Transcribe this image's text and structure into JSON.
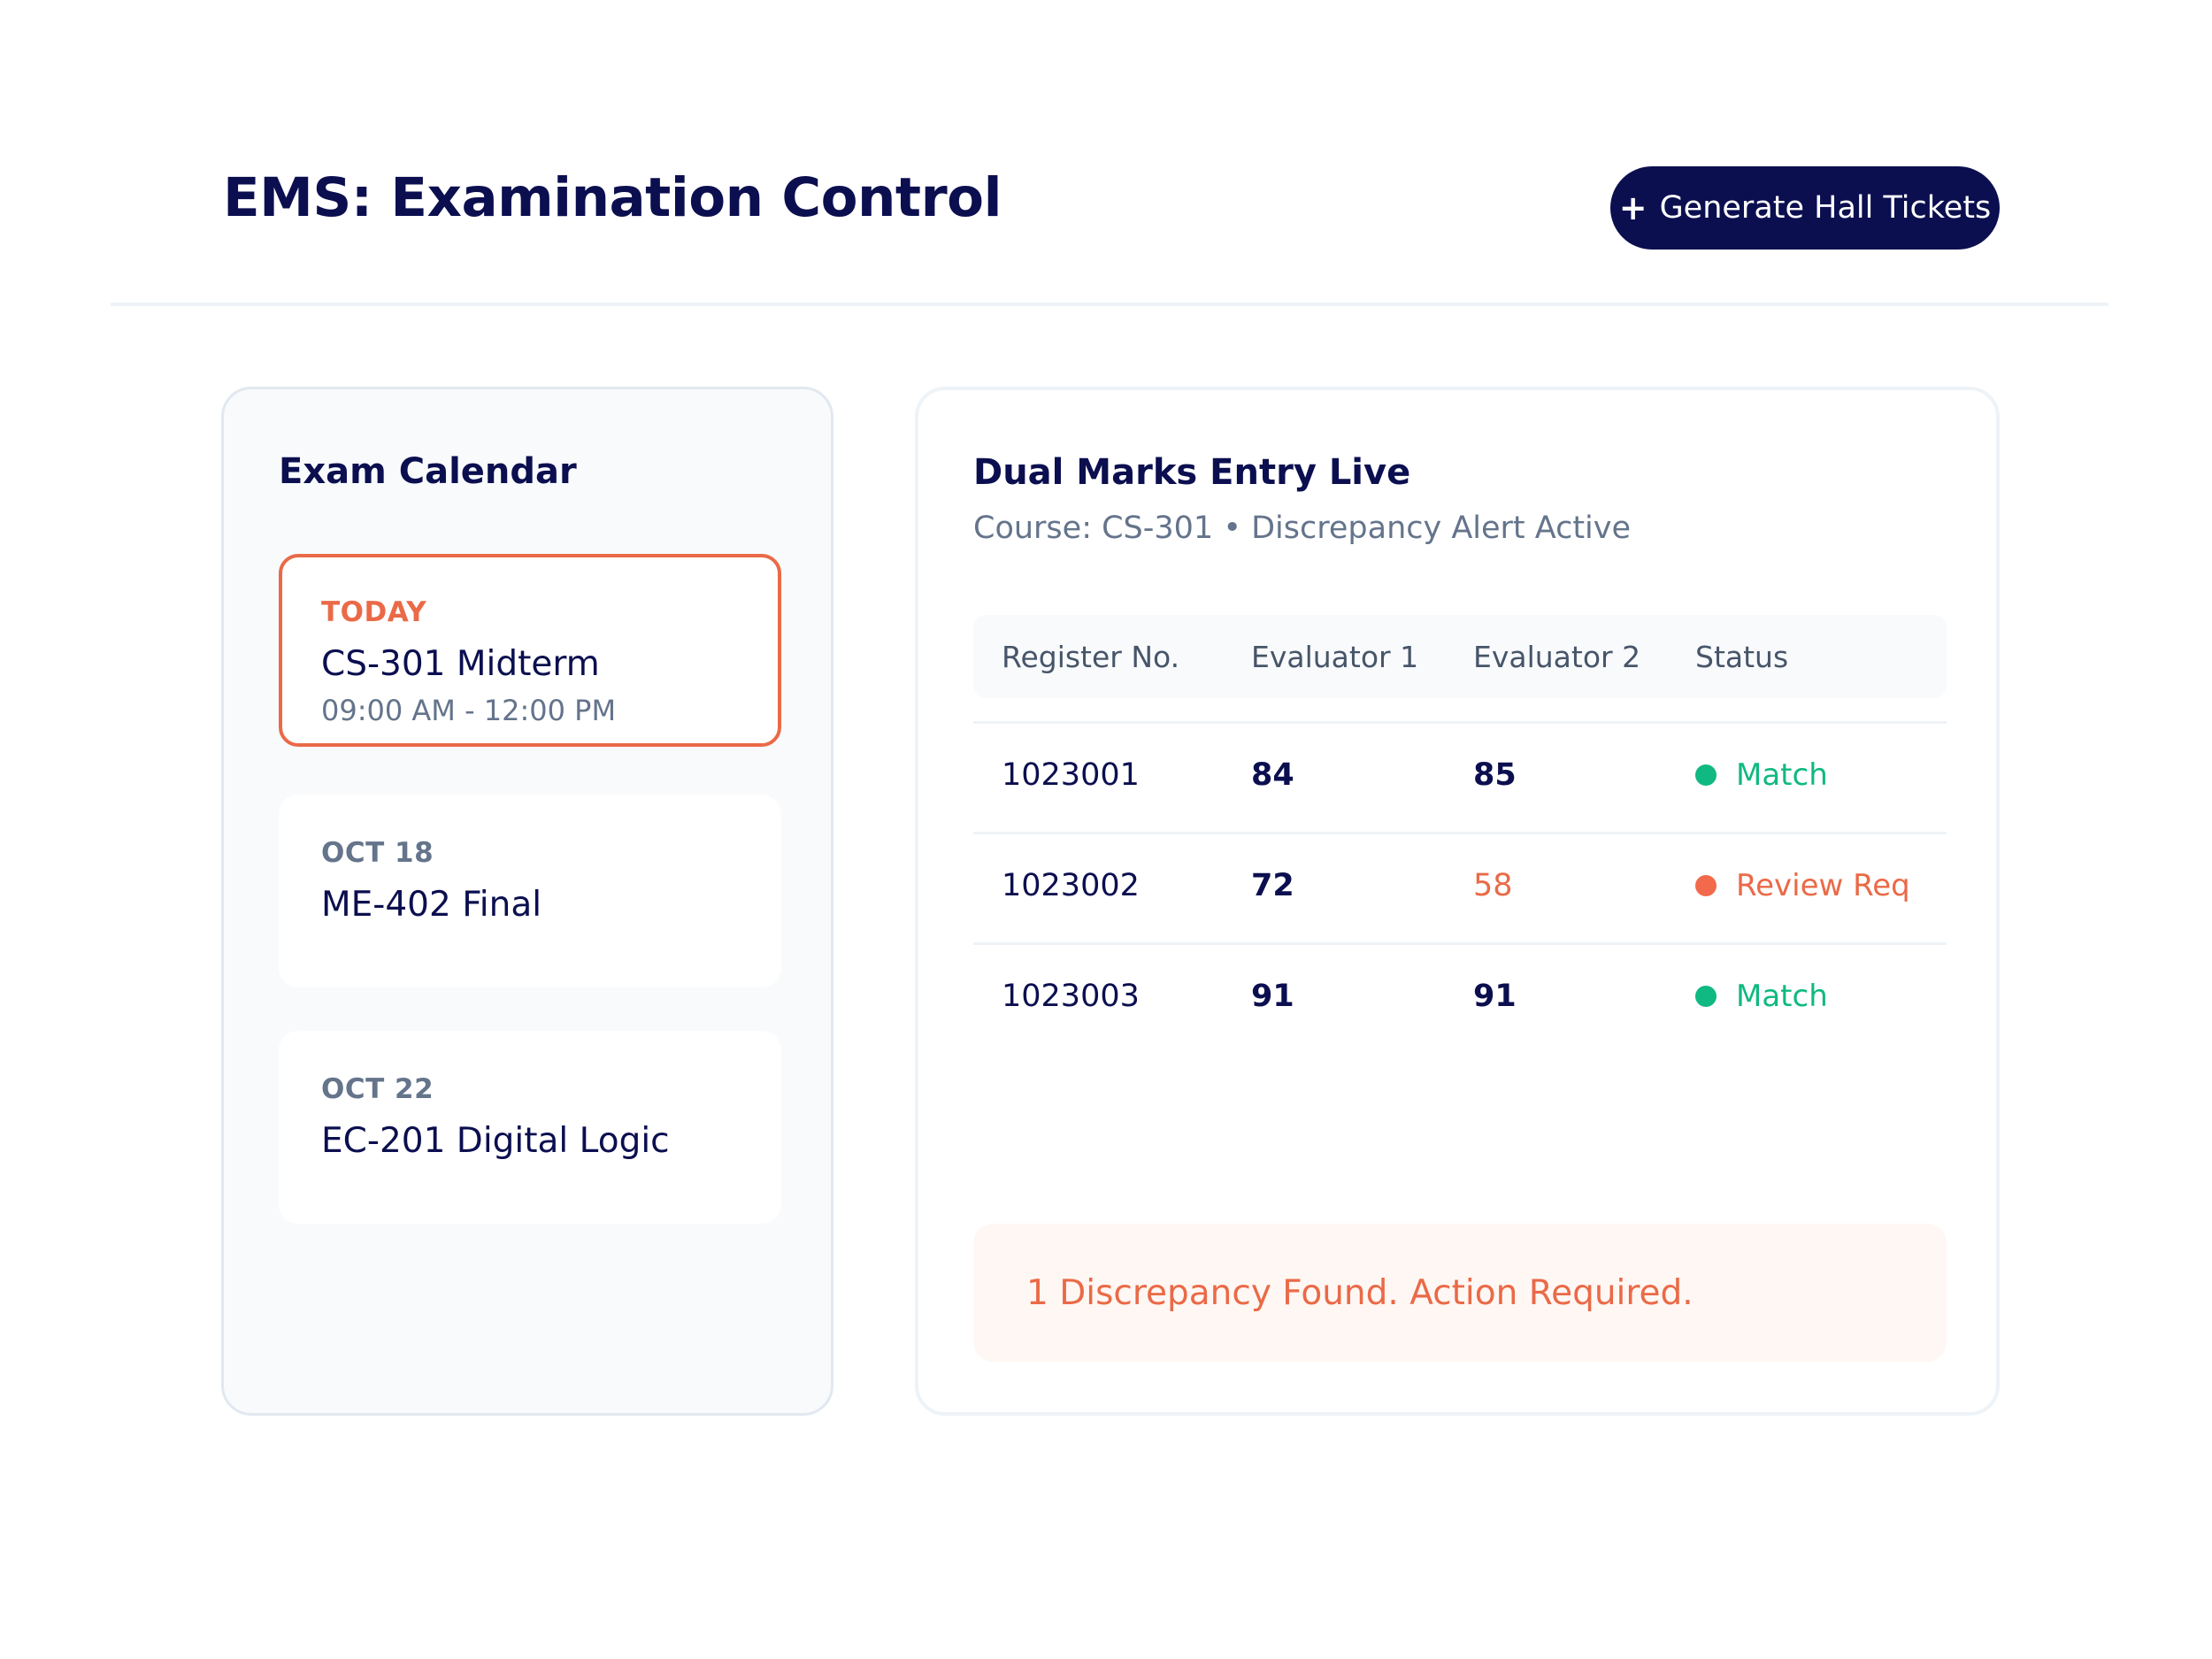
{
  "header": {
    "title": "EMS: Examination Control",
    "primary_action": {
      "icon": "plus-icon",
      "label": "Generate Hall Tickets"
    }
  },
  "calendar": {
    "title": "Exam Calendar",
    "items": [
      {
        "date": "TODAY",
        "name": "CS-301 Midterm",
        "time": "09:00 AM - 12:00 PM",
        "highlighted": true
      },
      {
        "date": "OCT 18",
        "name": "ME-402 Final"
      },
      {
        "date": "OCT 22",
        "name": "EC-201 Digital Logic"
      }
    ]
  },
  "marks": {
    "title": "Dual Marks Entry Live",
    "subtitle": "Course: CS-301 • Discrepancy Alert Active",
    "columns": [
      "Register No.",
      "Evaluator 1",
      "Evaluator 2",
      "Status"
    ],
    "rows": [
      {
        "register": "1023001",
        "eval1": "84",
        "eval2": "85",
        "status": "Match"
      },
      {
        "register": "1023002",
        "eval1": "72",
        "eval2": "58",
        "status": "Review Req"
      },
      {
        "register": "1023003",
        "eval1": "91",
        "eval2": "91",
        "status": "Match"
      }
    ],
    "alert": "1 Discrepancy Found. Action Required."
  },
  "colors": {
    "primary": "#0b0f4f",
    "accent_alert": "#ea6a47",
    "success": "#10b981",
    "muted_text": "#64748b",
    "alert_background": "#fff7f3"
  }
}
